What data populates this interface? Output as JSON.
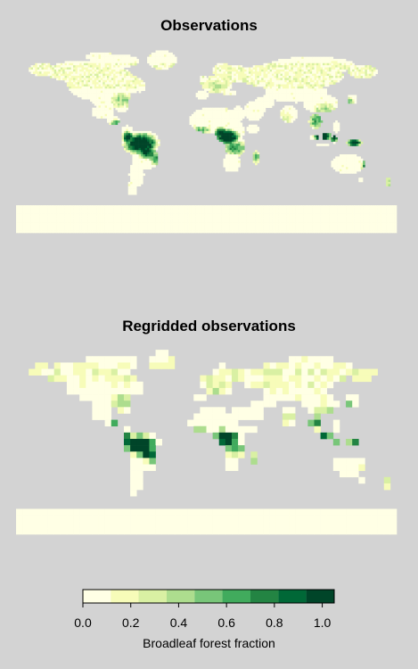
{
  "chart_data": [
    {
      "type": "heatmap",
      "title": "Observations",
      "description_kind": "global map, fine resolution",
      "colorscale": "colorbar"
    },
    {
      "type": "heatmap",
      "title": "Regridded observations",
      "description_kind": "global map, coarse resolution",
      "colorscale": "colorbar"
    }
  ],
  "colorbar": {
    "label": "Broadleaf forest fraction",
    "ticks": [
      "0.0",
      "0.2",
      "0.4",
      "0.6",
      "0.8",
      "1.0"
    ],
    "tick_values": [
      0.0,
      0.2,
      0.4,
      0.6,
      0.8,
      1.0
    ],
    "range": [
      0.0,
      1.05
    ],
    "bins": [
      0.0,
      0.117,
      0.233,
      0.35,
      0.467,
      0.583,
      0.7,
      0.817,
      0.933,
      1.05
    ],
    "colors": [
      "#ffffe5",
      "#f7fcb9",
      "#d9f0a3",
      "#addd8e",
      "#78c679",
      "#41ab5d",
      "#238443",
      "#006837",
      "#004529"
    ]
  },
  "titles": {
    "top": "Observations",
    "bottom": "Regridded observations"
  }
}
